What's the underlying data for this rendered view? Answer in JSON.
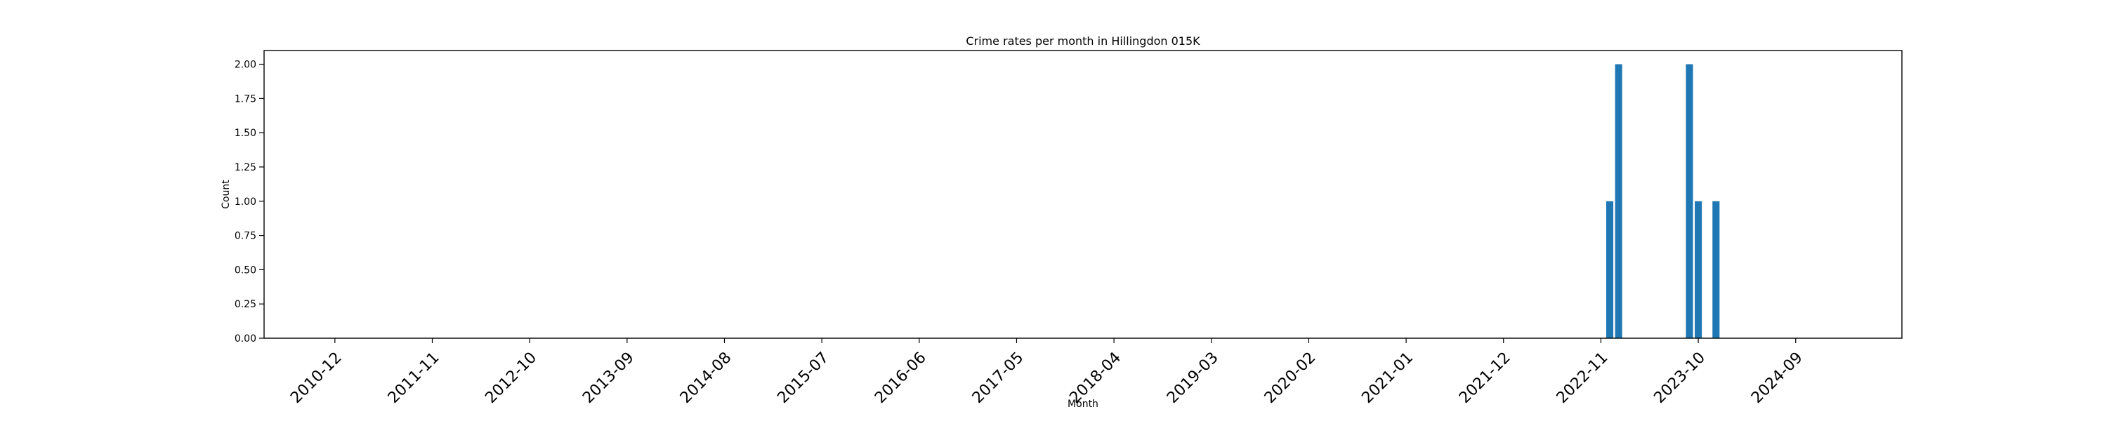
{
  "chart_data": {
    "type": "bar",
    "title": "Crime rates per month in Hillingdon 015K",
    "xlabel": "Month",
    "ylabel": "Count",
    "ylim": [
      0,
      2.1
    ],
    "yticks": [
      0,
      0.25,
      0.5,
      0.75,
      1.0,
      1.25,
      1.5,
      1.75,
      2.0
    ],
    "ytick_labels": [
      "0.00",
      "0.25",
      "0.50",
      "0.75",
      "1.00",
      "1.25",
      "1.50",
      "1.75",
      "2.00"
    ],
    "x_range": [
      "2010-04",
      "2025-09"
    ],
    "xtick_labels": [
      "2010-12",
      "2011-11",
      "2012-10",
      "2013-09",
      "2014-08",
      "2015-07",
      "2016-06",
      "2017-05",
      "2018-04",
      "2019-03",
      "2020-02",
      "2021-01",
      "2021-12",
      "2022-11",
      "2023-10",
      "2024-09"
    ],
    "x": [
      "2022-12",
      "2023-01",
      "2023-09",
      "2023-10",
      "2023-12"
    ],
    "values": [
      1,
      2,
      2,
      1,
      1
    ],
    "bar_color": "#1f77b4",
    "grid": false,
    "legend": "none"
  }
}
